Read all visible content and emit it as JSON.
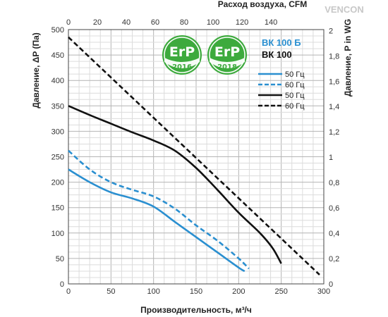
{
  "chart_data": {
    "type": "line",
    "top_axis_label": "Расход воздуха, CFM",
    "xlabel": "Производительность, м³/ч",
    "ylabel_left": "Давление, ΔP (Па)",
    "ylabel_right": "Давление, P in WG",
    "xlim": [
      0,
      300
    ],
    "ylim": [
      0,
      500
    ],
    "x_ticks": [
      0,
      50,
      100,
      150,
      200,
      250,
      300
    ],
    "y_ticks": [
      0,
      50,
      100,
      150,
      200,
      250,
      300,
      350,
      400,
      450,
      500
    ],
    "top_ticks": [
      0,
      20,
      40,
      60,
      80,
      100,
      120,
      140
    ],
    "top_tick_labels": [
      "0",
      "20",
      "40",
      "60",
      "80",
      "100",
      "120",
      "140"
    ],
    "right_ticks": [
      0,
      0.2,
      0.4,
      0.6,
      0.8,
      1,
      1.2,
      1.4,
      1.6,
      1.8,
      2
    ],
    "right_tick_labels": [
      "0",
      "0,2",
      "0,4",
      "0,6",
      "0,8",
      "1",
      "1,2",
      "1,4",
      "1,6",
      "1,8",
      "2"
    ],
    "grid": true,
    "models": [
      {
        "label": "ВК 100 Б",
        "color": "#2a8fd0"
      },
      {
        "label": "ВК 100",
        "color": "#111111"
      }
    ],
    "series": [
      {
        "name": "50 Гц",
        "color": "#2a8fd0",
        "dash": false,
        "x": [
          0,
          25,
          50,
          75,
          100,
          125,
          150,
          175,
          200,
          207
        ],
        "y": [
          225,
          200,
          180,
          168,
          152,
          122,
          92,
          62,
          32,
          25
        ]
      },
      {
        "name": "60 Гц",
        "color": "#2a8fd0",
        "dash": true,
        "x": [
          0,
          25,
          50,
          75,
          100,
          125,
          150,
          175,
          200,
          212
        ],
        "y": [
          262,
          225,
          200,
          185,
          172,
          148,
          115,
          85,
          50,
          30
        ]
      },
      {
        "name": "50 Гц",
        "color": "#111111",
        "dash": false,
        "x": [
          0,
          25,
          50,
          75,
          100,
          125,
          150,
          175,
          200,
          225,
          240,
          250
        ],
        "y": [
          350,
          332,
          315,
          298,
          282,
          262,
          228,
          185,
          140,
          100,
          70,
          40
        ]
      },
      {
        "name": "60 Гц",
        "color": "#111111",
        "dash": true,
        "x": [
          0,
          295
        ],
        "y": [
          485,
          18
        ]
      }
    ]
  },
  "badges": [
    {
      "text": "ErP",
      "year": "2016"
    },
    {
      "text": "ErP",
      "year": "2018"
    }
  ],
  "watermark": "VENCON"
}
